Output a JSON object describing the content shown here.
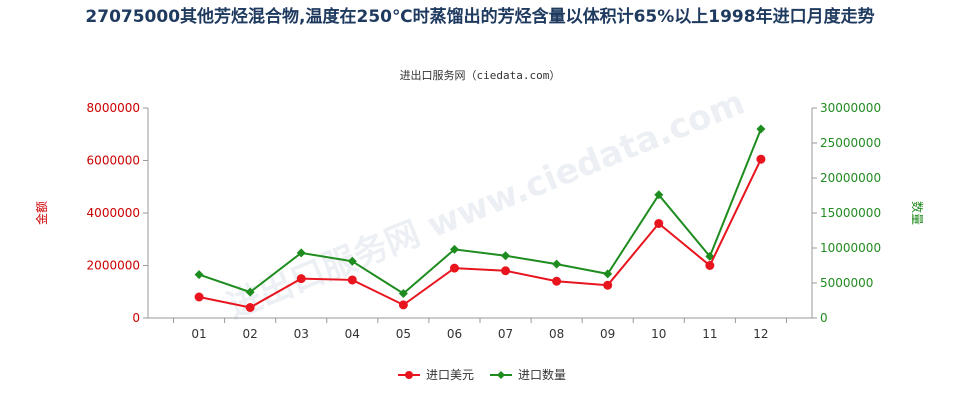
{
  "title": "27075000其他芳烃混合物,温度在250℃时蒸馏出的芳烃含量以体积计65%以上1998年进口月度走势",
  "subtitle": "进出口服务网（ciedata.com）",
  "watermark": "进出口服务网 www.ciedata.com",
  "colors": {
    "usd": "#e8141e",
    "qty": "#1e8c1e",
    "left_axis": "#cc0000",
    "right_axis": "#228b22"
  },
  "chart_data": {
    "type": "line",
    "categories": [
      "01",
      "02",
      "03",
      "04",
      "05",
      "06",
      "07",
      "08",
      "09",
      "10",
      "11",
      "12"
    ],
    "series": [
      {
        "name": "进口美元",
        "axis": "left",
        "values": [
          800000,
          400000,
          1500000,
          1450000,
          500000,
          1900000,
          1800000,
          1400000,
          1250000,
          3600000,
          2000000,
          6050000
        ]
      },
      {
        "name": "进口数量",
        "axis": "right",
        "values": [
          6200000,
          3700000,
          9300000,
          8100000,
          3500000,
          9800000,
          8900000,
          7700000,
          6300000,
          17600000,
          8800000,
          27000000
        ]
      }
    ],
    "ylabel_left": "金额",
    "ylabel_right": "数量",
    "ylim_left": [
      0,
      8000000
    ],
    "ylim_right": [
      0,
      30000000
    ],
    "yticks_left": [
      "0",
      "2000000",
      "4000000",
      "6000000",
      "8000000"
    ],
    "yticks_right": [
      "0",
      "5000000",
      "10000000",
      "15000000",
      "20000000",
      "25000000",
      "30000000"
    ],
    "grid": false,
    "legend_position": "bottom-center"
  }
}
